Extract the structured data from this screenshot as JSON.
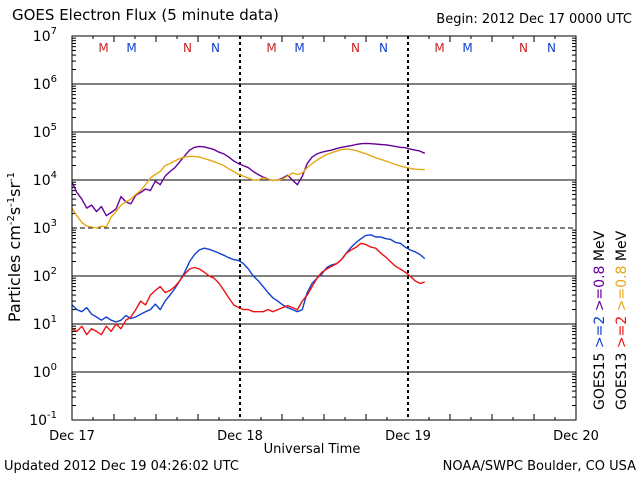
{
  "header": {
    "title": "GOES Electron Flux (5 minute data)",
    "begin": "Begin: 2012 Dec 17 0000 UTC"
  },
  "footer": {
    "updated": "Updated 2012 Dec 19 04:26:02 UTC",
    "credit": "NOAA/SWPC Boulder, CO USA"
  },
  "colors": {
    "goes15_high": "#660099",
    "goes13_high": "#e6a817",
    "goes15_low": "#1040d0",
    "goes13_low": "#ee1111",
    "m_marker": "#cc2222",
    "m_marker_alt": "#1040d0",
    "n_marker": "#cc2222",
    "n_marker_alt": "#1040d0",
    "grid": "#000000"
  },
  "chart_data": {
    "type": "line",
    "title": "GOES Electron Flux (5 minute data)",
    "xlabel": "Universal Time",
    "ylabel_parts": {
      "base": "Particles cm",
      "e1": "-2",
      "mid1": "s",
      "e2": "-1",
      "mid2": "sr",
      "e3": "-1"
    },
    "y_scale": "log",
    "ylim": [
      0.1,
      10000000
    ],
    "y_tick_exponents": [
      -1,
      0,
      1,
      2,
      3,
      4,
      5,
      6,
      7
    ],
    "y_tick_base": "10",
    "threshold_exponent": 3,
    "xlim_hours": [
      0,
      72
    ],
    "x_ticks": [
      {
        "hours": 0,
        "label": "Dec 17"
      },
      {
        "hours": 24,
        "label": "Dec 18"
      },
      {
        "hours": 48,
        "label": "Dec 19"
      },
      {
        "hours": 72,
        "label": "Dec 20"
      }
    ],
    "day_boundary_hours": [
      24,
      48
    ],
    "markers": [
      {
        "hours": 4.5,
        "label": "M",
        "sat": "GOES13"
      },
      {
        "hours": 8.5,
        "label": "M",
        "sat": "GOES15"
      },
      {
        "hours": 16.5,
        "label": "N",
        "sat": "GOES13"
      },
      {
        "hours": 20.5,
        "label": "N",
        "sat": "GOES15"
      },
      {
        "hours": 28.5,
        "label": "M",
        "sat": "GOES13"
      },
      {
        "hours": 32.5,
        "label": "M",
        "sat": "GOES15"
      },
      {
        "hours": 40.5,
        "label": "N",
        "sat": "GOES13"
      },
      {
        "hours": 44.5,
        "label": "N",
        "sat": "GOES15"
      },
      {
        "hours": 52.5,
        "label": "M",
        "sat": "GOES13"
      },
      {
        "hours": 56.5,
        "label": "M",
        "sat": "GOES15"
      },
      {
        "hours": 64.5,
        "label": "N",
        "sat": "GOES13"
      },
      {
        "hours": 68.5,
        "label": "N",
        "sat": "GOES15"
      }
    ],
    "right_legend": [
      {
        "label": "GOES15",
        "color_key": "grid",
        "group": 0
      },
      {
        "label": ">=2",
        "color_key": "goes15_low",
        "group": 0
      },
      {
        "label": ">=0.8",
        "color_key": "goes15_high",
        "group": 0
      },
      {
        "label": "MeV",
        "color_key": "grid",
        "group": 0
      },
      {
        "label": "GOES13",
        "color_key": "grid",
        "group": 1
      },
      {
        "label": ">=2",
        "color_key": "goes13_low",
        "group": 1
      },
      {
        "label": ">=0.8",
        "color_key": "goes13_high",
        "group": 1
      },
      {
        "label": "MeV",
        "color_key": "grid",
        "group": 1
      }
    ],
    "series": [
      {
        "name": "GOES15 >=0.8 MeV",
        "color_key": "goes15_high",
        "x": [
          0,
          0.7,
          1.4,
          2.1,
          2.8,
          3.5,
          4.2,
          4.9,
          5.6,
          6.3,
          7,
          7.7,
          8.4,
          9.1,
          9.8,
          10.5,
          11.2,
          11.9,
          12.6,
          13.3,
          14,
          14.7,
          15.4,
          16.1,
          16.8,
          17.5,
          18.2,
          18.9,
          19.6,
          20.3,
          21,
          21.7,
          22.4,
          23.1,
          23.8,
          24.5,
          25.2,
          25.9,
          26.6,
          27.3,
          28,
          28.7,
          29.4,
          30.1,
          30.8,
          31.5,
          32.2,
          32.9,
          33.6,
          34.3,
          35,
          35.7,
          36.4,
          37.1,
          37.8,
          38.5,
          39.2,
          39.9,
          40.6,
          41.3,
          42,
          42.7,
          43.4,
          44.1,
          44.8,
          45.5,
          46.2,
          46.9,
          47.6,
          48.3,
          49,
          49.7,
          50.4
        ],
        "values": [
          9000,
          5500,
          4000,
          2600,
          3000,
          2200,
          2800,
          1800,
          2100,
          2500,
          4500,
          3500,
          3200,
          4800,
          5500,
          6500,
          6000,
          9500,
          8000,
          12000,
          15000,
          18000,
          24000,
          32000,
          42000,
          48000,
          50000,
          49000,
          46000,
          43000,
          38000,
          35000,
          30000,
          25000,
          22000,
          20000,
          18000,
          15000,
          13000,
          11500,
          10500,
          9800,
          10000,
          11000,
          12500,
          10000,
          8000,
          12000,
          22000,
          30000,
          35000,
          38000,
          40000,
          42000,
          45000,
          48000,
          50000,
          52000,
          55000,
          57000,
          58000,
          57000,
          56000,
          55000,
          54000,
          52000,
          50000,
          48000,
          47000,
          44000,
          42000,
          40000,
          36000
        ]
      },
      {
        "name": "GOES13 >=0.8 MeV",
        "color_key": "goes13_high",
        "x": [
          0,
          0.7,
          1.4,
          2.1,
          2.8,
          3.5,
          4.2,
          4.9,
          5.6,
          6.3,
          7,
          7.7,
          8.4,
          9.1,
          9.8,
          10.5,
          11.2,
          11.9,
          12.6,
          13.3,
          14,
          14.7,
          15.4,
          16.1,
          16.8,
          17.5,
          18.2,
          18.9,
          19.6,
          20.3,
          21,
          21.7,
          22.4,
          23.1,
          23.8,
          24.5,
          25.2,
          25.9,
          26.6,
          27.3,
          28,
          28.7,
          29.4,
          30.1,
          30.8,
          31.5,
          32.2,
          32.9,
          33.6,
          34.3,
          35,
          35.7,
          36.4,
          37.1,
          37.8,
          38.5,
          39.2,
          39.9,
          40.6,
          41.3,
          42,
          42.7,
          43.4,
          44.1,
          44.8,
          45.5,
          46.2,
          46.9,
          47.6,
          48.3,
          49,
          49.7,
          50.4
        ],
        "values": [
          2600,
          1800,
          1300,
          1100,
          1050,
          1000,
          1100,
          1050,
          1700,
          2200,
          3000,
          3500,
          4000,
          5000,
          6000,
          8000,
          11000,
          13000,
          15000,
          20000,
          22000,
          25000,
          28000,
          30000,
          31000,
          31000,
          30000,
          28000,
          26000,
          24000,
          22000,
          20000,
          17000,
          15000,
          13000,
          12000,
          11000,
          10000,
          10000,
          11000,
          10500,
          9800,
          10000,
          10500,
          12000,
          14000,
          13000,
          14000,
          18000,
          22000,
          26000,
          30000,
          34000,
          37000,
          40000,
          43000,
          44000,
          43000,
          41000,
          38000,
          35000,
          32000,
          29000,
          27000,
          25000,
          23000,
          21000,
          19500,
          18500,
          17500,
          16800,
          16500,
          16500
        ]
      },
      {
        "name": "GOES15 >=2 MeV",
        "color_key": "goes15_low",
        "x": [
          0,
          0.7,
          1.4,
          2.1,
          2.8,
          3.5,
          4.2,
          4.9,
          5.6,
          6.3,
          7,
          7.7,
          8.4,
          9.1,
          9.8,
          10.5,
          11.2,
          11.9,
          12.6,
          13.3,
          14,
          14.7,
          15.4,
          16.1,
          16.8,
          17.5,
          18.2,
          18.9,
          19.6,
          20.3,
          21,
          21.7,
          22.4,
          23.1,
          23.8,
          24.5,
          25.2,
          25.9,
          26.6,
          27.3,
          28,
          28.7,
          29.4,
          30.1,
          30.8,
          31.5,
          32.2,
          32.9,
          33.6,
          34.3,
          35,
          35.7,
          36.4,
          37.1,
          37.8,
          38.5,
          39.2,
          39.9,
          40.6,
          41.3,
          42,
          42.7,
          43.4,
          44.1,
          44.8,
          45.5,
          46.2,
          46.9,
          47.6,
          48.3,
          49,
          49.7,
          50.4
        ],
        "values": [
          25,
          20,
          18,
          22,
          16,
          14,
          12,
          14,
          12,
          11,
          12,
          15,
          13,
          14,
          16,
          18,
          20,
          26,
          20,
          30,
          40,
          55,
          80,
          120,
          200,
          280,
          350,
          380,
          360,
          330,
          300,
          270,
          240,
          220,
          210,
          180,
          140,
          100,
          80,
          60,
          45,
          35,
          30,
          25,
          22,
          20,
          18,
          20,
          45,
          70,
          90,
          110,
          150,
          170,
          180,
          220,
          300,
          400,
          500,
          600,
          700,
          720,
          650,
          650,
          600,
          580,
          500,
          480,
          400,
          350,
          320,
          280,
          230
        ]
      },
      {
        "name": "GOES13 >=2 MeV",
        "color_key": "goes13_low",
        "x": [
          0,
          0.7,
          1.4,
          2.1,
          2.8,
          3.5,
          4.2,
          4.9,
          5.6,
          6.3,
          7,
          7.7,
          8.4,
          9.1,
          9.8,
          10.5,
          11.2,
          11.9,
          12.6,
          13.3,
          14,
          14.7,
          15.4,
          16.1,
          16.8,
          17.5,
          18.2,
          18.9,
          19.6,
          20.3,
          21,
          21.7,
          22.4,
          23.1,
          23.8,
          24.5,
          25.2,
          25.9,
          26.6,
          27.3,
          28,
          28.7,
          29.4,
          30.1,
          30.8,
          31.5,
          32.2,
          32.9,
          33.6,
          34.3,
          35,
          35.7,
          36.4,
          37.1,
          37.8,
          38.5,
          39.2,
          39.9,
          40.6,
          41.3,
          42,
          42.7,
          43.4,
          44.1,
          44.8,
          45.5,
          46.2,
          46.9,
          47.6,
          48.3,
          49,
          49.7,
          50.4
        ],
        "values": [
          8,
          7,
          9,
          6,
          8,
          7,
          6,
          9,
          7,
          10,
          8,
          12,
          14,
          20,
          30,
          25,
          40,
          50,
          60,
          45,
          50,
          60,
          80,
          110,
          140,
          150,
          140,
          120,
          100,
          90,
          70,
          50,
          35,
          25,
          22,
          20,
          20,
          18,
          18,
          18,
          20,
          18,
          20,
          22,
          24,
          22,
          20,
          30,
          40,
          60,
          90,
          120,
          140,
          160,
          180,
          220,
          300,
          350,
          400,
          480,
          450,
          400,
          380,
          300,
          250,
          200,
          160,
          140,
          120,
          100,
          80,
          70,
          75
        ]
      }
    ]
  }
}
